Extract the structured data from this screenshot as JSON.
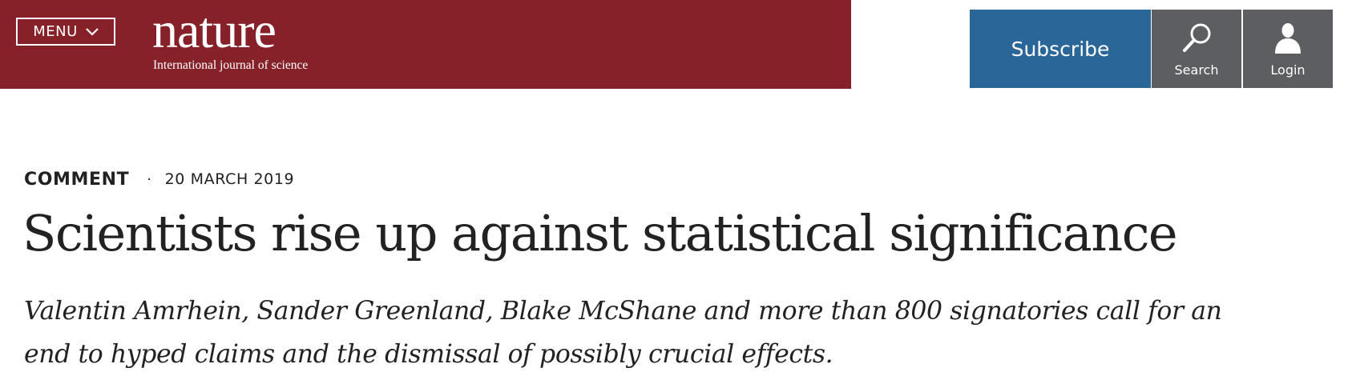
{
  "header": {
    "menu_label": "MENU",
    "menu_icon": "chevron-down-icon",
    "logo_word": "nature",
    "logo_tagline": "International journal of science",
    "subscribe_label": "Subscribe",
    "search_label": "Search",
    "search_icon": "search-icon",
    "login_label": "Login",
    "login_icon": "user-icon",
    "colors": {
      "brand_bar": "#862029",
      "subscribe": "#2a6698",
      "icon_buttons": "#5d5e61"
    }
  },
  "article": {
    "type": "COMMENT",
    "separator": "·",
    "date": "20 MARCH 2019",
    "title": "Scientists rise up against statistical significance",
    "standfirst": "Valentin Amrhein, Sander Greenland, Blake McShane and more than 800 signatories call for an end to hyped claims and the dismissal of possibly crucial effects."
  }
}
